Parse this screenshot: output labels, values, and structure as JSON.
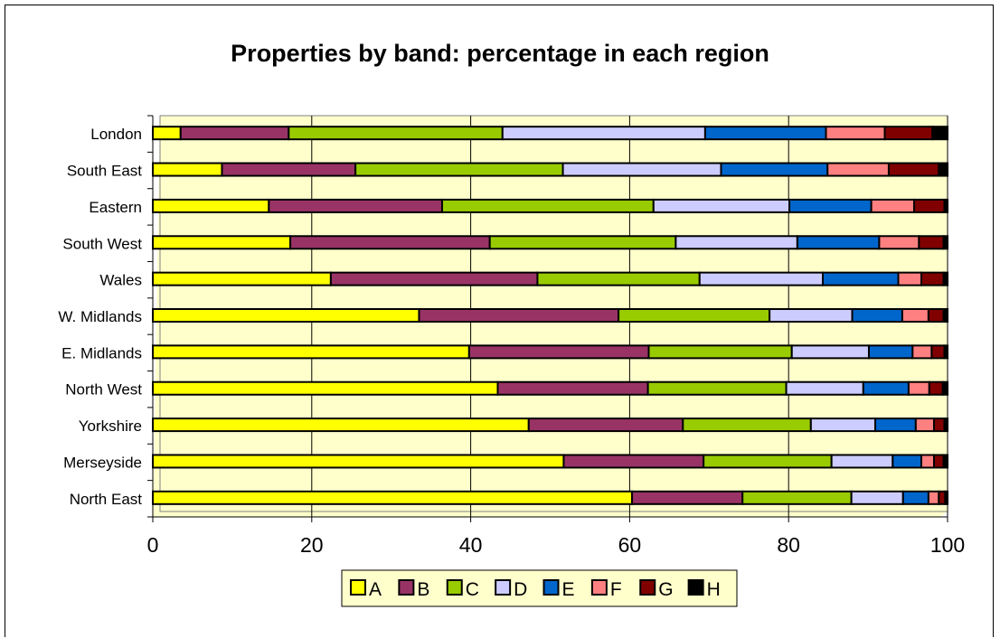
{
  "chart_data": {
    "type": "bar",
    "orientation": "horizontal",
    "stacked": true,
    "title": "Properties by band: percentage in each region",
    "xlabel": "",
    "ylabel": "",
    "xlim": [
      0,
      100
    ],
    "xticks": [
      "0",
      "20",
      "40",
      "60",
      "80",
      "100"
    ],
    "grid": "vertical",
    "legend_position": "bottom",
    "plot_background": "#ffffcc",
    "categories": [
      "London",
      "South East",
      "Eastern",
      "South West",
      "Wales",
      "W. Midlands",
      "E. Midlands",
      "North West",
      "Yorkshire",
      "Merseyside",
      "North East"
    ],
    "series": [
      {
        "name": "A",
        "color": "#ffff00",
        "values": [
          3.5,
          8.7,
          14.6,
          17.3,
          22.4,
          33.5,
          39.8,
          43.4,
          47.3,
          51.7,
          60.3
        ]
      },
      {
        "name": "B",
        "color": "#993366",
        "values": [
          13.6,
          16.8,
          21.8,
          25.1,
          26.0,
          25.1,
          22.6,
          18.9,
          19.4,
          17.6,
          13.9
        ]
      },
      {
        "name": "C",
        "color": "#99cc00",
        "values": [
          26.9,
          26.1,
          26.6,
          23.4,
          20.4,
          19.0,
          18.0,
          17.4,
          16.1,
          16.1,
          13.7
        ]
      },
      {
        "name": "D",
        "color": "#ccccff",
        "values": [
          25.5,
          19.9,
          17.1,
          15.3,
          15.5,
          10.4,
          9.7,
          9.7,
          8.1,
          7.7,
          6.5
        ]
      },
      {
        "name": "E",
        "color": "#0066cc",
        "values": [
          15.2,
          13.4,
          10.3,
          10.3,
          9.5,
          6.3,
          5.5,
          5.7,
          5.1,
          3.6,
          3.2
        ]
      },
      {
        "name": "F",
        "color": "#ff8080",
        "values": [
          7.4,
          7.7,
          5.4,
          5.0,
          2.9,
          3.3,
          2.4,
          2.6,
          2.3,
          1.6,
          1.3
        ]
      },
      {
        "name": "G",
        "color": "#800000",
        "values": [
          6.0,
          6.3,
          3.8,
          3.1,
          2.8,
          1.9,
          1.6,
          1.7,
          1.3,
          1.2,
          0.8
        ]
      },
      {
        "name": "H",
        "color": "#000000",
        "values": [
          1.9,
          1.1,
          0.4,
          0.5,
          0.5,
          0.5,
          0.4,
          0.6,
          0.4,
          0.5,
          0.3
        ]
      }
    ]
  }
}
